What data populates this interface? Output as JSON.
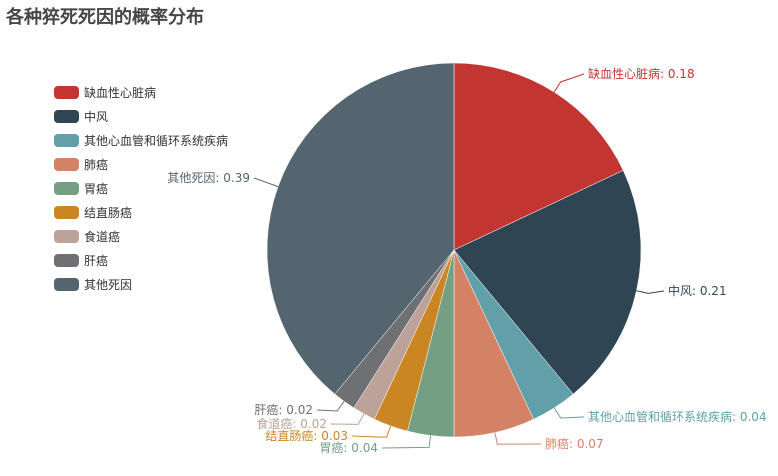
{
  "title": "各种猝死死因的概率分布",
  "legend": {
    "items": [
      {
        "label": "缺血性心脏病",
        "color": "#c23531"
      },
      {
        "label": "中风",
        "color": "#2f4554"
      },
      {
        "label": "其他心血管和循环系统疾病",
        "color": "#61a0a8"
      },
      {
        "label": "肺癌",
        "color": "#d48265"
      },
      {
        "label": "胃癌",
        "color": "#749f83"
      },
      {
        "label": "结直肠癌",
        "color": "#ca8622"
      },
      {
        "label": "食道癌",
        "color": "#bda29a"
      },
      {
        "label": "肝癌",
        "color": "#6e7074"
      },
      {
        "label": "其他死因",
        "color": "#546570"
      }
    ]
  },
  "chart_data": {
    "type": "pie",
    "title": "各种猝死死因的概率分布",
    "categories": [
      "缺血性心脏病",
      "中风",
      "其他心血管和循环系统疾病",
      "肺癌",
      "胃癌",
      "结直肠癌",
      "食道癌",
      "肝癌",
      "其他死因"
    ],
    "values": [
      0.18,
      0.21,
      0.04,
      0.07,
      0.04,
      0.03,
      0.02,
      0.02,
      0.39
    ],
    "colors": [
      "#c23531",
      "#2f4554",
      "#61a0a8",
      "#d48265",
      "#749f83",
      "#ca8622",
      "#bda29a",
      "#6e7074",
      "#546570"
    ],
    "labels": [
      "缺血性心脏病: 0.18",
      "中风: 0.21",
      "其他心血管和循环系统疾病: 0.04",
      "肺癌: 0.07",
      "胃癌: 0.04",
      "结直肠癌: 0.03",
      "食道癌: 0.02",
      "肝癌: 0.02",
      "其他死因: 0.39"
    ],
    "legend_position": "left",
    "start_angle": "top, clockwise"
  }
}
